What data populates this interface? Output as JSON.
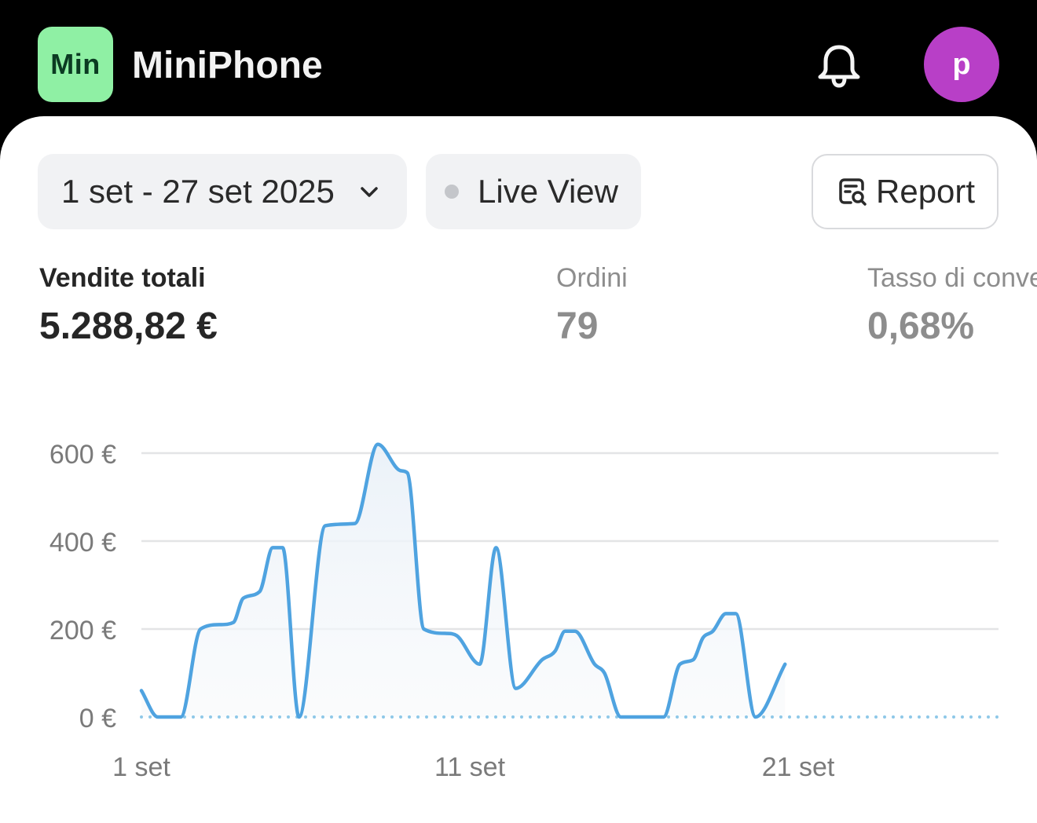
{
  "header": {
    "logo_text": "Min",
    "store_name": "MiniPhone",
    "avatar_letter": "p",
    "notification_icon": "bell-icon",
    "colors": {
      "logo_bg": "#8ff0a4",
      "avatar_bg": "#b83fc7"
    }
  },
  "controls": {
    "date_range": "1 set - 27 set 2025",
    "live_view": "Live View",
    "report": "Report"
  },
  "metrics": [
    {
      "label": "Vendite totali",
      "value": "5.288,82 €"
    },
    {
      "label": "Ordini",
      "value": "79"
    },
    {
      "label": "Tasso di conversione",
      "value": "0,68%"
    }
  ],
  "chart_data": {
    "type": "area",
    "title": "",
    "xlabel": "",
    "ylabel": "",
    "ylim": [
      0,
      600
    ],
    "y_ticks": [
      {
        "value": 0,
        "label": "0 €"
      },
      {
        "value": 200,
        "label": "200 €"
      },
      {
        "value": 400,
        "label": "400 €"
      },
      {
        "value": 600,
        "label": "600 €"
      }
    ],
    "x_ticks": [
      {
        "day": 1,
        "label": "1 set"
      },
      {
        "day": 11,
        "label": "11 set"
      },
      {
        "day": 21,
        "label": "21 set"
      }
    ],
    "grid": true,
    "line_color": "#4fa3e0",
    "baseline_color": "#8ec8e8",
    "series": [
      {
        "points": [
          [
            1.0,
            60
          ],
          [
            1.5,
            0
          ],
          [
            2.2,
            0
          ],
          [
            2.8,
            200
          ],
          [
            3.4,
            210
          ],
          [
            3.8,
            215
          ],
          [
            4.1,
            270
          ],
          [
            4.6,
            285
          ],
          [
            5.0,
            385
          ],
          [
            5.3,
            385
          ],
          [
            5.8,
            0
          ],
          [
            6.6,
            435
          ],
          [
            7.5,
            440
          ],
          [
            8.2,
            620
          ],
          [
            8.9,
            560
          ],
          [
            9.1,
            555
          ],
          [
            9.6,
            200
          ],
          [
            10.3,
            190
          ],
          [
            10.6,
            185
          ],
          [
            11.3,
            120
          ],
          [
            11.8,
            385
          ],
          [
            12.4,
            65
          ],
          [
            13.2,
            130
          ],
          [
            13.6,
            150
          ],
          [
            13.9,
            195
          ],
          [
            14.2,
            195
          ],
          [
            14.8,
            120
          ],
          [
            15.1,
            100
          ],
          [
            15.6,
            0
          ],
          [
            16.0,
            0
          ],
          [
            16.9,
            0
          ],
          [
            17.4,
            120
          ],
          [
            17.8,
            130
          ],
          [
            18.1,
            180
          ],
          [
            18.4,
            195
          ],
          [
            18.8,
            235
          ],
          [
            19.1,
            235
          ],
          [
            19.7,
            0
          ],
          [
            20.6,
            120
          ]
        ]
      }
    ]
  }
}
